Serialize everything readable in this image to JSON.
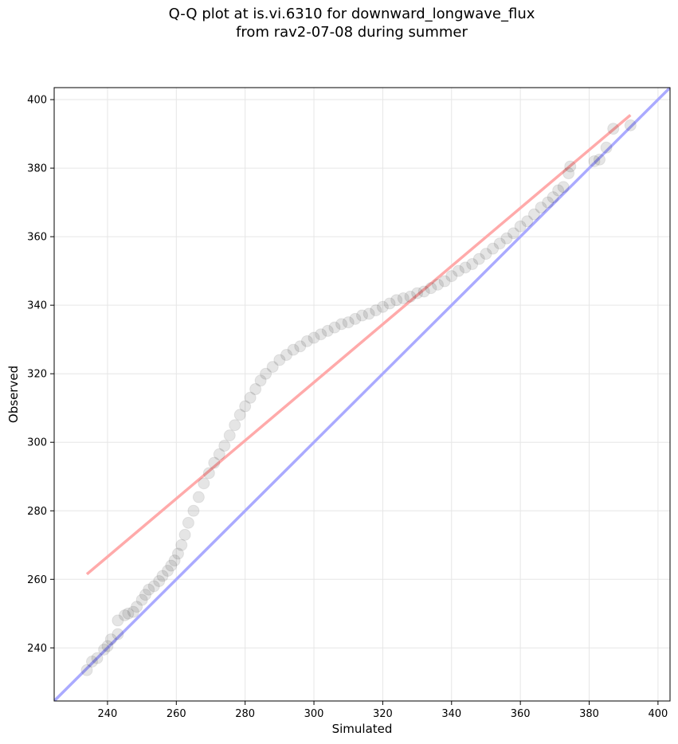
{
  "chart_data": {
    "type": "scatter",
    "title": [
      "Q-Q plot at is.vi.6310 for downward_longwave_flux",
      "from rav2-07-08 during summer"
    ],
    "xlabel": "Simulated",
    "ylabel": "Observed",
    "xlim": [
      224.5,
      403.5
    ],
    "ylim": [
      224.5,
      403.5
    ],
    "xticks": [
      240,
      260,
      280,
      300,
      320,
      340,
      360,
      380,
      400
    ],
    "yticks": [
      240,
      260,
      280,
      300,
      320,
      340,
      360,
      380,
      400
    ],
    "grid": true,
    "point_color": "#000000",
    "reference_line": {
      "name": "1:1",
      "color": "#aaaaff",
      "points": [
        [
          224.5,
          224.5
        ],
        [
          403.5,
          403.5
        ]
      ]
    },
    "fit_line": {
      "name": "fit",
      "color": "#ffaaaa",
      "points": [
        [
          234,
          261.5
        ],
        [
          392,
          395.5
        ]
      ]
    },
    "series": [
      {
        "name": "quantiles",
        "points": [
          [
            234,
            233.5
          ],
          [
            235.5,
            236
          ],
          [
            237,
            237
          ],
          [
            239,
            239.5
          ],
          [
            240,
            240.5
          ],
          [
            241,
            242.5
          ],
          [
            243,
            244
          ],
          [
            243,
            248
          ],
          [
            245,
            249.5
          ],
          [
            246,
            250
          ],
          [
            247.5,
            250.5
          ],
          [
            248.5,
            252
          ],
          [
            250,
            254
          ],
          [
            251,
            255.5
          ],
          [
            252,
            257
          ],
          [
            253.5,
            258
          ],
          [
            255,
            259.5
          ],
          [
            256,
            261
          ],
          [
            257.5,
            262.5
          ],
          [
            258.5,
            264
          ],
          [
            259.5,
            265.5
          ],
          [
            260.5,
            267.5
          ],
          [
            261.5,
            270
          ],
          [
            262.5,
            273
          ],
          [
            263.5,
            276.5
          ],
          [
            265,
            280
          ],
          [
            266.5,
            284
          ],
          [
            268,
            288
          ],
          [
            269.5,
            291
          ],
          [
            271,
            294
          ],
          [
            272.5,
            296.5
          ],
          [
            274,
            299
          ],
          [
            275.5,
            302
          ],
          [
            277,
            305
          ],
          [
            278.5,
            308
          ],
          [
            280,
            310.5
          ],
          [
            281.5,
            313
          ],
          [
            283,
            315.5
          ],
          [
            284.5,
            318
          ],
          [
            286,
            320
          ],
          [
            288,
            322
          ],
          [
            290,
            324
          ],
          [
            292,
            325.5
          ],
          [
            294,
            327
          ],
          [
            296,
            328
          ],
          [
            298,
            329.5
          ],
          [
            300,
            330.5
          ],
          [
            302,
            331.5
          ],
          [
            304,
            332.5
          ],
          [
            306,
            333.5
          ],
          [
            308,
            334.5
          ],
          [
            310,
            335
          ],
          [
            312,
            336
          ],
          [
            314,
            337
          ],
          [
            316,
            337.5
          ],
          [
            318,
            338.5
          ],
          [
            320,
            339.5
          ],
          [
            322,
            340.5
          ],
          [
            324,
            341.5
          ],
          [
            326,
            342
          ],
          [
            328,
            342.5
          ],
          [
            330,
            343.5
          ],
          [
            332,
            344
          ],
          [
            334,
            345
          ],
          [
            336,
            346
          ],
          [
            338,
            347
          ],
          [
            340,
            348.5
          ],
          [
            342,
            350
          ],
          [
            344,
            351
          ],
          [
            346,
            352
          ],
          [
            348,
            353.5
          ],
          [
            350,
            355
          ],
          [
            352,
            356.5
          ],
          [
            354,
            358
          ],
          [
            356,
            359.5
          ],
          [
            358,
            361
          ],
          [
            360,
            363
          ],
          [
            362,
            364.5
          ],
          [
            364,
            366.5
          ],
          [
            366,
            368.5
          ],
          [
            368,
            370
          ],
          [
            369.5,
            371.5
          ],
          [
            371,
            373.5
          ],
          [
            372.5,
            374.5
          ],
          [
            374,
            378.5
          ],
          [
            374.5,
            380.5
          ],
          [
            381.5,
            382
          ],
          [
            383,
            382.5
          ],
          [
            385,
            386
          ],
          [
            387,
            391.5
          ],
          [
            392,
            392.5
          ]
        ]
      }
    ]
  }
}
